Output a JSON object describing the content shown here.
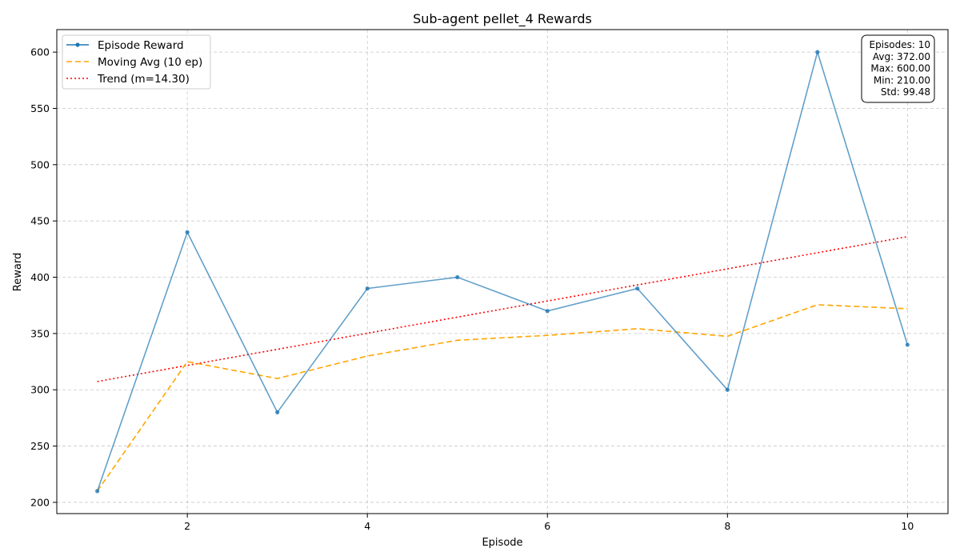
{
  "chart_data": {
    "type": "line",
    "title": "Sub-agent pellet_4 Rewards",
    "xlabel": "Episode",
    "ylabel": "Reward",
    "xlim": [
      0.55,
      10.45
    ],
    "ylim": [
      190,
      620
    ],
    "xticks": [
      2,
      4,
      6,
      8,
      10
    ],
    "yticks": [
      200,
      250,
      300,
      350,
      400,
      450,
      500,
      550,
      600
    ],
    "grid": true,
    "legend_placement": "top-left",
    "x": [
      1,
      2,
      3,
      4,
      5,
      6,
      7,
      8,
      9,
      10
    ],
    "series": [
      {
        "name": "Episode Reward",
        "style": "solid-with-markers",
        "color": "#1f77b4",
        "values": [
          210,
          440,
          280,
          390,
          400,
          370,
          390,
          300,
          600,
          340
        ]
      },
      {
        "name": "Moving Avg (10 ep)",
        "style": "dashed",
        "color": "#ffa500",
        "values": [
          210,
          325,
          310,
          330,
          344,
          348.33,
          354.29,
          347.5,
          375.56,
          372
        ]
      },
      {
        "name": "Trend (m=14.30)",
        "style": "dotted",
        "color": "#ff0000",
        "values": [
          307.35,
          321.65,
          335.95,
          350.25,
          364.55,
          378.85,
          393.15,
          407.45,
          421.75,
          436.05
        ]
      }
    ],
    "stats_box": {
      "placement": "top-right",
      "lines": [
        "Episodes: 10",
        "Avg: 372.00",
        "Max: 600.00",
        "Min: 210.00",
        "Std: 99.48"
      ]
    }
  }
}
